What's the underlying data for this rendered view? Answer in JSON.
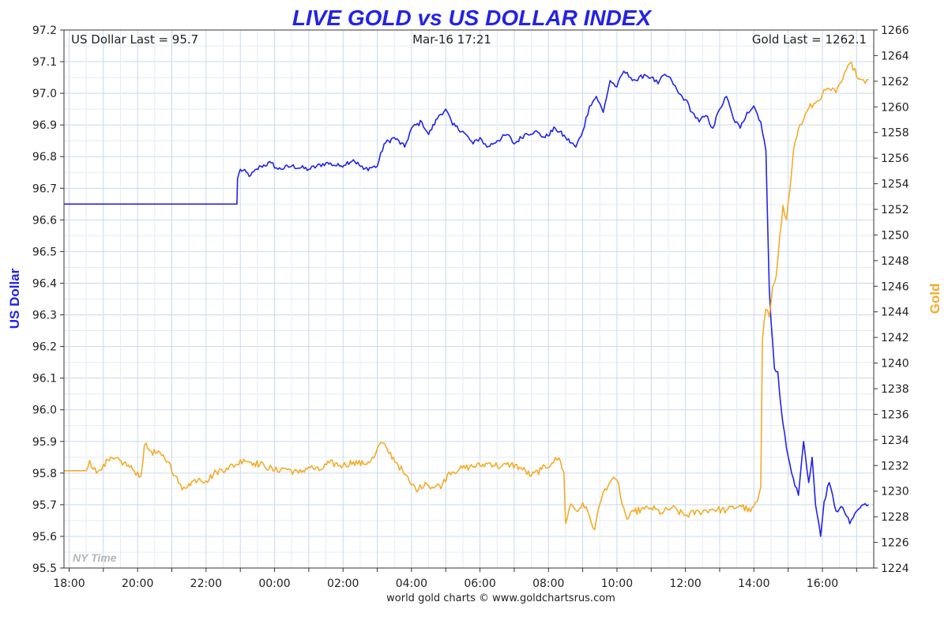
{
  "chart_data": {
    "type": "line",
    "title": "LIVE GOLD vs US DOLLAR INDEX",
    "header": {
      "left": "US Dollar Last = 95.7",
      "center": "Mar-16  17:21",
      "right": "Gold Last = 1262.1"
    },
    "footer": "world gold charts © www.goldchartsrus.com",
    "time_zone_label": "NY Time",
    "x_ticks": [
      "18:00",
      "20:00",
      "22:00",
      "00:00",
      "02:00",
      "04:00",
      "06:00",
      "08:00",
      "10:00",
      "12:00",
      "14:00",
      "16:00"
    ],
    "x_tick_hours": [
      0,
      2,
      4,
      6,
      8,
      10,
      12,
      14,
      16,
      18,
      20,
      22
    ],
    "x_range_hours": [
      -0.15,
      23.5
    ],
    "grid": true,
    "y_left": {
      "label": "US Dollar",
      "range": [
        95.5,
        97.2
      ],
      "ticks": [
        "95.5",
        "95.6",
        "95.7",
        "95.8",
        "95.9",
        "96.0",
        "96.1",
        "96.2",
        "96.3",
        "96.4",
        "96.5",
        "96.6",
        "96.7",
        "96.8",
        "96.9",
        "97.0",
        "97.1",
        "97.2"
      ],
      "color": "#2323e6"
    },
    "y_right": {
      "label": "Gold",
      "range": [
        1224,
        1266
      ],
      "ticks": [
        "1224",
        "1226",
        "1228",
        "1230",
        "1232",
        "1234",
        "1236",
        "1238",
        "1240",
        "1242",
        "1244",
        "1246",
        "1248",
        "1250",
        "1252",
        "1254",
        "1256",
        "1258",
        "1260",
        "1262",
        "1264",
        "1266"
      ],
      "color": "#f2ac2a"
    },
    "series": [
      {
        "name": "US Dollar",
        "axis": "left",
        "color": "#2323e6",
        "points": [
          [
            -0.15,
            96.65
          ],
          [
            4.9,
            96.65
          ],
          [
            4.92,
            96.73
          ],
          [
            5.0,
            96.76
          ],
          [
            5.3,
            96.74
          ],
          [
            5.6,
            96.77
          ],
          [
            5.9,
            96.78
          ],
          [
            6.1,
            96.76
          ],
          [
            6.5,
            96.77
          ],
          [
            7.0,
            96.76
          ],
          [
            7.5,
            96.78
          ],
          [
            7.9,
            96.77
          ],
          [
            8.3,
            96.79
          ],
          [
            8.6,
            96.76
          ],
          [
            9.0,
            96.77
          ],
          [
            9.2,
            96.84
          ],
          [
            9.5,
            96.86
          ],
          [
            9.8,
            96.83
          ],
          [
            10.0,
            96.89
          ],
          [
            10.3,
            96.91
          ],
          [
            10.5,
            96.87
          ],
          [
            10.8,
            96.93
          ],
          [
            11.0,
            96.95
          ],
          [
            11.2,
            96.9
          ],
          [
            11.5,
            96.88
          ],
          [
            11.8,
            96.84
          ],
          [
            12.0,
            96.86
          ],
          [
            12.2,
            96.83
          ],
          [
            12.5,
            96.85
          ],
          [
            12.8,
            96.87
          ],
          [
            13.0,
            96.84
          ],
          [
            13.3,
            96.87
          ],
          [
            13.6,
            96.88
          ],
          [
            13.9,
            96.86
          ],
          [
            14.2,
            96.89
          ],
          [
            14.5,
            96.86
          ],
          [
            14.8,
            96.83
          ],
          [
            15.0,
            96.88
          ],
          [
            15.2,
            96.96
          ],
          [
            15.4,
            96.99
          ],
          [
            15.6,
            96.94
          ],
          [
            15.8,
            97.04
          ],
          [
            16.0,
            97.02
          ],
          [
            16.2,
            97.07
          ],
          [
            16.4,
            97.05
          ],
          [
            16.6,
            97.04
          ],
          [
            16.8,
            97.06
          ],
          [
            17.0,
            97.05
          ],
          [
            17.2,
            97.03
          ],
          [
            17.4,
            97.06
          ],
          [
            17.6,
            97.04
          ],
          [
            17.8,
            97.0
          ],
          [
            18.0,
            96.98
          ],
          [
            18.2,
            96.94
          ],
          [
            18.4,
            96.91
          ],
          [
            18.6,
            96.93
          ],
          [
            18.8,
            96.89
          ],
          [
            19.0,
            96.95
          ],
          [
            19.2,
            96.99
          ],
          [
            19.4,
            96.92
          ],
          [
            19.6,
            96.89
          ],
          [
            19.8,
            96.94
          ],
          [
            20.0,
            96.96
          ],
          [
            20.2,
            96.91
          ],
          [
            20.35,
            96.82
          ],
          [
            20.4,
            96.6
          ],
          [
            20.45,
            96.38
          ],
          [
            20.5,
            96.28
          ],
          [
            20.6,
            96.13
          ],
          [
            20.7,
            96.12
          ],
          [
            20.8,
            96.0
          ],
          [
            20.95,
            95.88
          ],
          [
            21.1,
            95.8
          ],
          [
            21.3,
            95.73
          ],
          [
            21.45,
            95.9
          ],
          [
            21.6,
            95.77
          ],
          [
            21.7,
            95.85
          ],
          [
            21.8,
            95.7
          ],
          [
            21.95,
            95.6
          ],
          [
            22.05,
            95.71
          ],
          [
            22.2,
            95.77
          ],
          [
            22.4,
            95.68
          ],
          [
            22.6,
            95.69
          ],
          [
            22.8,
            95.64
          ],
          [
            23.0,
            95.68
          ],
          [
            23.2,
            95.7
          ],
          [
            23.35,
            95.7
          ]
        ]
      },
      {
        "name": "Gold",
        "axis": "right",
        "color": "#f2ac2a",
        "points": [
          [
            -0.15,
            1231.6
          ],
          [
            0.5,
            1231.6
          ],
          [
            0.6,
            1232.4
          ],
          [
            0.8,
            1231.4
          ],
          [
            1.0,
            1232.1
          ],
          [
            1.3,
            1232.5
          ],
          [
            1.6,
            1232.2
          ],
          [
            1.9,
            1231.6
          ],
          [
            2.1,
            1231.2
          ],
          [
            2.2,
            1233.6
          ],
          [
            2.4,
            1233.1
          ],
          [
            2.7,
            1232.8
          ],
          [
            2.9,
            1232.3
          ],
          [
            3.1,
            1231.2
          ],
          [
            3.3,
            1230.1
          ],
          [
            3.5,
            1230.6
          ],
          [
            3.8,
            1231.0
          ],
          [
            4.0,
            1230.8
          ],
          [
            4.3,
            1231.5
          ],
          [
            4.6,
            1231.8
          ],
          [
            4.9,
            1232.1
          ],
          [
            5.1,
            1232.5
          ],
          [
            5.4,
            1232.2
          ],
          [
            5.7,
            1232.0
          ],
          [
            6.0,
            1231.6
          ],
          [
            6.3,
            1231.8
          ],
          [
            6.7,
            1231.4
          ],
          [
            7.0,
            1231.9
          ],
          [
            7.3,
            1231.6
          ],
          [
            7.6,
            1232.2
          ],
          [
            8.0,
            1232.0
          ],
          [
            8.3,
            1232.3
          ],
          [
            8.6,
            1232.1
          ],
          [
            8.9,
            1232.6
          ],
          [
            9.1,
            1233.8
          ],
          [
            9.3,
            1233.2
          ],
          [
            9.6,
            1232.1
          ],
          [
            9.8,
            1231.3
          ],
          [
            10.0,
            1230.5
          ],
          [
            10.2,
            1230.1
          ],
          [
            10.4,
            1230.7
          ],
          [
            10.6,
            1230.3
          ],
          [
            10.9,
            1230.5
          ],
          [
            11.1,
            1231.5
          ],
          [
            11.4,
            1231.7
          ],
          [
            11.7,
            1231.9
          ],
          [
            12.0,
            1232.0
          ],
          [
            12.3,
            1232.2
          ],
          [
            12.6,
            1231.9
          ],
          [
            12.9,
            1232.1
          ],
          [
            13.2,
            1231.8
          ],
          [
            13.5,
            1231.2
          ],
          [
            13.8,
            1231.7
          ],
          [
            14.1,
            1232.2
          ],
          [
            14.3,
            1232.6
          ],
          [
            14.45,
            1231.5
          ],
          [
            14.5,
            1227.5
          ],
          [
            14.65,
            1229.0
          ],
          [
            14.85,
            1228.4
          ],
          [
            15.0,
            1229.1
          ],
          [
            15.2,
            1228.0
          ],
          [
            15.35,
            1227.0
          ],
          [
            15.5,
            1229.0
          ],
          [
            15.65,
            1230.2
          ],
          [
            15.85,
            1230.9
          ],
          [
            16.05,
            1230.6
          ],
          [
            16.15,
            1229.0
          ],
          [
            16.3,
            1227.8
          ],
          [
            16.5,
            1228.4
          ],
          [
            16.8,
            1228.6
          ],
          [
            17.0,
            1228.7
          ],
          [
            17.3,
            1228.3
          ],
          [
            17.6,
            1228.7
          ],
          [
            18.0,
            1228.1
          ],
          [
            18.4,
            1228.4
          ],
          [
            18.8,
            1228.6
          ],
          [
            19.2,
            1228.5
          ],
          [
            19.6,
            1228.9
          ],
          [
            19.9,
            1228.4
          ],
          [
            20.1,
            1229.2
          ],
          [
            20.2,
            1230.3
          ],
          [
            20.25,
            1241.8
          ],
          [
            20.35,
            1244.2
          ],
          [
            20.45,
            1243.6
          ],
          [
            20.55,
            1246.0
          ],
          [
            20.65,
            1246.8
          ],
          [
            20.75,
            1249.8
          ],
          [
            20.85,
            1252.3
          ],
          [
            20.95,
            1251.2
          ],
          [
            21.05,
            1253.5
          ],
          [
            21.15,
            1256.5
          ],
          [
            21.3,
            1258.3
          ],
          [
            21.45,
            1259.0
          ],
          [
            21.6,
            1259.9
          ],
          [
            21.8,
            1260.3
          ],
          [
            22.0,
            1261.0
          ],
          [
            22.2,
            1261.4
          ],
          [
            22.4,
            1261.1
          ],
          [
            22.6,
            1262.2
          ],
          [
            22.8,
            1263.4
          ],
          [
            22.95,
            1263.0
          ],
          [
            23.05,
            1262.2
          ],
          [
            23.2,
            1262.1
          ],
          [
            23.35,
            1262.1
          ]
        ]
      }
    ]
  }
}
